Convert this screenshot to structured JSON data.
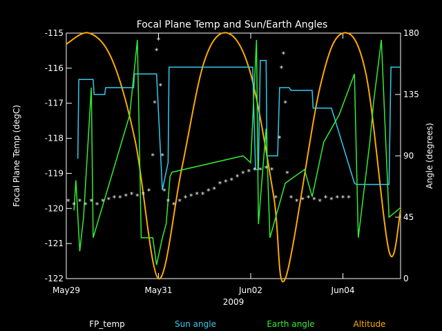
{
  "chart_data": {
    "type": "line",
    "title": "Focal Plane Temp and Sun/Earth Angles",
    "xlabel": "2009",
    "ylabel_left": "Focal Plane Temp (degC)",
    "ylabel_right": "Angle (degrees)",
    "x_range": [
      "2009-05-29",
      "2009-06-05T06:00"
    ],
    "x_ticks": [
      {
        "date": "2009-05-29",
        "label": "May29"
      },
      {
        "date": "2009-05-31",
        "label": "May31"
      },
      {
        "date": "2009-06-02",
        "label": "Jun02"
      },
      {
        "date": "2009-06-04",
        "label": "Jun04"
      }
    ],
    "ylim_left": [
      -122,
      -115
    ],
    "y_ticks_left": [
      -122,
      -121,
      -120,
      -119,
      -118,
      -117,
      -116,
      -115
    ],
    "ylim_right": [
      0,
      180
    ],
    "y_ticks_right": [
      0,
      45,
      90,
      135,
      180
    ],
    "grid": false,
    "legend_position": "bottom",
    "colors": {
      "background": "#000000",
      "axes": "#ffffff",
      "fp_temp": "#ffffff",
      "sun_angle": "#33ccee",
      "earth_angle": "#33ee33",
      "altitude": "#ffaa00"
    },
    "series": [
      {
        "name": "FP_temp",
        "axis": "left",
        "style": "marker",
        "marker": "*",
        "points": [
          [
            "2009-05-29T01:00",
            -119.8
          ],
          [
            "2009-05-29T04:00",
            -119.9
          ],
          [
            "2009-05-29T07:00",
            -119.8
          ],
          [
            "2009-05-29T10:00",
            -119.9
          ],
          [
            "2009-05-29T13:00",
            -119.8
          ],
          [
            "2009-05-29T16:00",
            -119.9
          ],
          [
            "2009-05-29T19:00",
            -119.8
          ],
          [
            "2009-05-29T22:00",
            -119.75
          ],
          [
            "2009-05-30T01:00",
            -119.7
          ],
          [
            "2009-05-30T04:00",
            -119.7
          ],
          [
            "2009-05-30T07:00",
            -119.65
          ],
          [
            "2009-05-30T10:00",
            -119.6
          ],
          [
            "2009-05-30T13:00",
            -119.65
          ],
          [
            "2009-05-30T16:00",
            -119.6
          ],
          [
            "2009-05-30T19:00",
            -119.5
          ],
          [
            "2009-05-30T21:00",
            -118.5
          ],
          [
            "2009-05-30T22:00",
            -117.0
          ],
          [
            "2009-05-30T23:00",
            -115.5
          ],
          [
            "2009-05-31T00:00",
            -115.2
          ],
          [
            "2009-05-31T01:00",
            -116.5
          ],
          [
            "2009-05-31T02:00",
            -118.5
          ],
          [
            "2009-05-31T03:00",
            -119.5
          ],
          [
            "2009-05-31T05:00",
            -119.8
          ],
          [
            "2009-05-31T08:00",
            -119.9
          ],
          [
            "2009-05-31T11:00",
            -119.8
          ],
          [
            "2009-05-31T14:00",
            -119.7
          ],
          [
            "2009-05-31T17:00",
            -119.65
          ],
          [
            "2009-05-31T20:00",
            -119.6
          ],
          [
            "2009-05-31T23:00",
            -119.6
          ],
          [
            "2009-06-01T02:00",
            -119.5
          ],
          [
            "2009-06-01T05:00",
            -119.45
          ],
          [
            "2009-06-01T08:00",
            -119.3
          ],
          [
            "2009-06-01T11:00",
            -119.25
          ],
          [
            "2009-06-01T14:00",
            -119.2
          ],
          [
            "2009-06-01T17:00",
            -119.1
          ],
          [
            "2009-06-01T20:00",
            -119.0
          ],
          [
            "2009-06-01T23:00",
            -118.95
          ],
          [
            "2009-06-02T02:00",
            -118.9
          ],
          [
            "2009-06-02T05:00",
            -118.9
          ],
          [
            "2009-06-02T08:00",
            -118.85
          ],
          [
            "2009-06-02T11:00",
            -118.9
          ],
          [
            "2009-06-02T13:00",
            -119.7
          ],
          [
            "2009-06-02T15:00",
            -118.0
          ],
          [
            "2009-06-02T16:00",
            -116.0
          ],
          [
            "2009-06-02T17:00",
            -115.6
          ],
          [
            "2009-06-02T18:00",
            -117.0
          ],
          [
            "2009-06-02T19:00",
            -119.0
          ],
          [
            "2009-06-02T21:00",
            -119.7
          ],
          [
            "2009-06-03T00:00",
            -119.8
          ],
          [
            "2009-06-03T03:00",
            -119.75
          ],
          [
            "2009-06-03T06:00",
            -119.7
          ],
          [
            "2009-06-03T09:00",
            -119.75
          ],
          [
            "2009-06-03T12:00",
            -119.8
          ],
          [
            "2009-06-03T15:00",
            -119.7
          ],
          [
            "2009-06-03T18:00",
            -119.75
          ],
          [
            "2009-06-03T21:00",
            -119.7
          ],
          [
            "2009-06-04T00:00",
            -119.7
          ],
          [
            "2009-06-04T03:00",
            -119.7
          ]
        ]
      },
      {
        "name": "Sun angle",
        "axis": "right",
        "style": "line",
        "points": [
          [
            "2009-05-29T06:00",
            88
          ],
          [
            "2009-05-29T06:30",
            146
          ],
          [
            "2009-05-29T14:00",
            146
          ],
          [
            "2009-05-29T14:30",
            135
          ],
          [
            "2009-05-29T20:00",
            135
          ],
          [
            "2009-05-29T20:30",
            140
          ],
          [
            "2009-05-30T11:00",
            140
          ],
          [
            "2009-05-30T11:30",
            150
          ],
          [
            "2009-05-30T23:00",
            150
          ],
          [
            "2009-05-31T02:00",
            65
          ],
          [
            "2009-05-31T05:00",
            85
          ],
          [
            "2009-05-31T05:30",
            155
          ],
          [
            "2009-06-02T00:00",
            155
          ],
          [
            "2009-06-02T01:00",
            155
          ],
          [
            "2009-06-02T02:30",
            80
          ],
          [
            "2009-06-02T04:00",
            80
          ],
          [
            "2009-06-02T05:00",
            160
          ],
          [
            "2009-06-02T08:00",
            160
          ],
          [
            "2009-06-02T08:30",
            90
          ],
          [
            "2009-06-02T14:00",
            90
          ],
          [
            "2009-06-02T15:00",
            140
          ],
          [
            "2009-06-02T20:00",
            140
          ],
          [
            "2009-06-02T21:00",
            138
          ],
          [
            "2009-06-03T08:00",
            138
          ],
          [
            "2009-06-03T08:30",
            125
          ],
          [
            "2009-06-03T18:00",
            125
          ],
          [
            "2009-06-04T06:00",
            70
          ],
          [
            "2009-06-04T07:00",
            69
          ],
          [
            "2009-06-05T00:00",
            69
          ],
          [
            "2009-06-05T01:00",
            155
          ],
          [
            "2009-06-05T06:00",
            155
          ]
        ]
      },
      {
        "name": "Earth angle",
        "axis": "right",
        "style": "line",
        "points": [
          [
            "2009-05-29T04:00",
            50
          ],
          [
            "2009-05-29T05:00",
            72
          ],
          [
            "2009-05-29T07:00",
            20
          ],
          [
            "2009-05-29T09:00",
            45
          ],
          [
            "2009-05-29T13:00",
            140
          ],
          [
            "2009-05-29T14:00",
            30
          ],
          [
            "2009-05-30T09:00",
            120
          ],
          [
            "2009-05-30T13:00",
            175
          ],
          [
            "2009-05-30T15:00",
            30
          ],
          [
            "2009-05-30T21:00",
            30
          ],
          [
            "2009-05-30T23:00",
            10
          ],
          [
            "2009-05-31T02:00",
            30
          ],
          [
            "2009-05-31T04:00",
            40
          ],
          [
            "2009-05-31T06:00",
            75
          ],
          [
            "2009-05-31T07:00",
            78
          ],
          [
            "2009-06-01T20:00",
            90
          ],
          [
            "2009-06-02T00:00",
            85
          ],
          [
            "2009-06-02T03:00",
            175
          ],
          [
            "2009-06-02T04:00",
            40
          ],
          [
            "2009-06-02T08:00",
            110
          ],
          [
            "2009-06-02T10:00",
            30
          ],
          [
            "2009-06-02T14:00",
            50
          ],
          [
            "2009-06-02T18:00",
            70
          ],
          [
            "2009-06-03T04:00",
            80
          ],
          [
            "2009-06-03T08:00",
            60
          ],
          [
            "2009-06-03T14:00",
            100
          ],
          [
            "2009-06-03T22:00",
            120
          ],
          [
            "2009-06-04T06:00",
            150
          ],
          [
            "2009-06-04T08:00",
            30
          ],
          [
            "2009-06-04T14:00",
            100
          ],
          [
            "2009-06-04T16:00",
            130
          ],
          [
            "2009-06-04T20:00",
            175
          ],
          [
            "2009-06-05T00:00",
            45
          ],
          [
            "2009-06-05T06:00",
            52
          ]
        ]
      },
      {
        "name": "Altitude",
        "axis": "right",
        "style": "curve",
        "points": [
          [
            "2009-05-29T00:00",
            172
          ],
          [
            "2009-05-29T12:00",
            180
          ],
          [
            "2009-05-30T00:00",
            160
          ],
          [
            "2009-05-30T12:00",
            100
          ],
          [
            "2009-05-31T00:00",
            0
          ],
          [
            "2009-05-31T12:00",
            80
          ],
          [
            "2009-06-01T00:00",
            160
          ],
          [
            "2009-06-01T12:00",
            180
          ],
          [
            "2009-06-02T00:00",
            150
          ],
          [
            "2009-06-02T12:00",
            60
          ],
          [
            "2009-06-02T18:00",
            0
          ],
          [
            "2009-06-03T12:00",
            140
          ],
          [
            "2009-06-04T00:00",
            180
          ],
          [
            "2009-06-04T12:00",
            150
          ],
          [
            "2009-06-05T00:00",
            20
          ],
          [
            "2009-06-05T06:00",
            50
          ]
        ]
      }
    ]
  }
}
